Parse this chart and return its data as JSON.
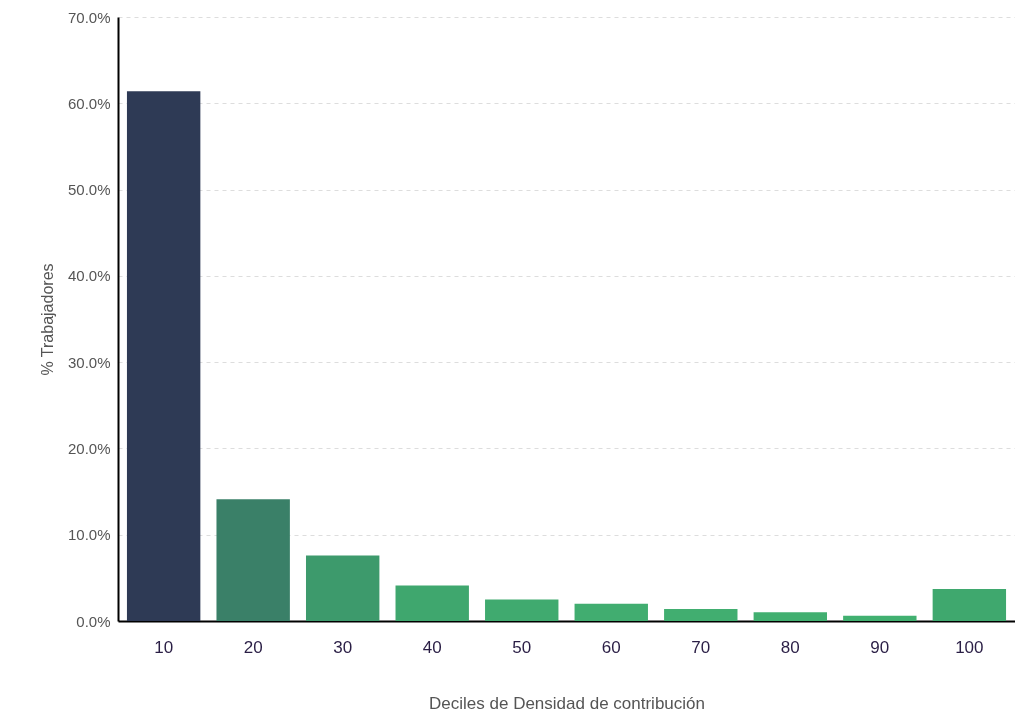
{
  "chart_data": {
    "type": "bar",
    "xlabel": "Deciles de Densidad de contribución",
    "ylabel": "% Trabajadores",
    "categories": [
      "10",
      "20",
      "30",
      "40",
      "50",
      "60",
      "70",
      "80",
      "90",
      "100"
    ],
    "values": [
      61.4,
      14.1,
      7.6,
      4.1,
      2.5,
      2.0,
      1.4,
      1.0,
      0.6,
      3.7
    ],
    "colors": [
      "#2e3a55",
      "#3a8068",
      "#3d9a6c",
      "#3fa76e",
      "#40aa6f",
      "#41ad70",
      "#41ae70",
      "#41af70",
      "#41b070",
      "#3fa86e"
    ],
    "ylim": [
      0,
      70
    ],
    "yticks": [
      {
        "value": 0,
        "label": "0.0%"
      },
      {
        "value": 10,
        "label": "10.0%"
      },
      {
        "value": 20,
        "label": "20.0%"
      },
      {
        "value": 30,
        "label": "30.0%"
      },
      {
        "value": 40,
        "label": "40.0%"
      },
      {
        "value": 50,
        "label": "50.0%"
      },
      {
        "value": 60,
        "label": "60.0%"
      },
      {
        "value": 70,
        "label": "70.0%"
      }
    ],
    "grid": "y"
  }
}
